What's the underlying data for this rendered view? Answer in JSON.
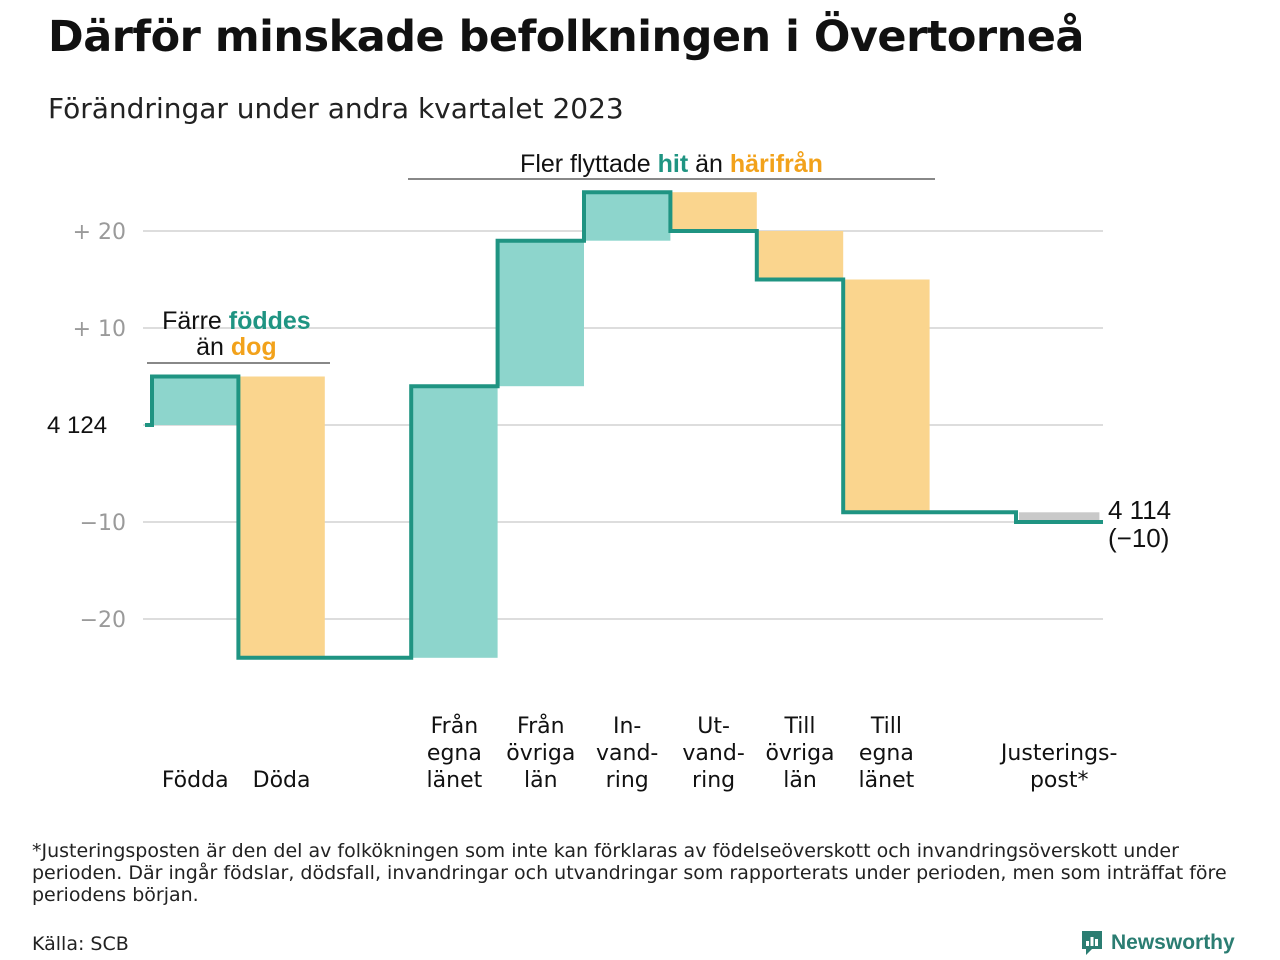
{
  "title": "Därför minskade befolkningen i Övertorneå",
  "subtitle": "Förändringar under andra kvartalet 2023",
  "chart_data": {
    "type": "waterfall",
    "start_value": 4124,
    "start_label": "4  124",
    "end_value": 4114,
    "end_label": "4 114",
    "end_change_label": "(−10)",
    "y_tick_values": [
      20,
      10,
      0,
      -10,
      -20
    ],
    "y_tick_labels": [
      "+  20",
      "+  10",
      "",
      "−10",
      "−20"
    ],
    "ylim": [
      -25,
      25
    ],
    "steps": [
      {
        "label": [
          "Födda"
        ],
        "value": 5,
        "kind": "gain"
      },
      {
        "label": [
          "Döda"
        ],
        "value": -29,
        "kind": "loss"
      },
      {
        "label": [],
        "value": 0,
        "kind": "gap"
      },
      {
        "label": [
          "Från",
          "egna",
          "länet"
        ],
        "value": 28,
        "kind": "gain"
      },
      {
        "label": [
          "Från",
          "övriga",
          "län"
        ],
        "value": 15,
        "kind": "gain"
      },
      {
        "label": [
          "In-",
          "vand-",
          "ring"
        ],
        "value": 5,
        "kind": "gain"
      },
      {
        "label": [
          "Ut-",
          "vand-",
          "ring"
        ],
        "value": -4,
        "kind": "loss"
      },
      {
        "label": [
          "Till",
          "övriga",
          "län"
        ],
        "value": -5,
        "kind": "loss"
      },
      {
        "label": [
          "Till",
          "egna",
          "länet"
        ],
        "value": -24,
        "kind": "loss"
      },
      {
        "label": [],
        "value": 0,
        "kind": "gap"
      },
      {
        "label": [
          "Justerings-",
          "post*"
        ],
        "value": -1,
        "kind": "adjust"
      }
    ],
    "annotations": {
      "births": {
        "line1": "Färre ",
        "line1_em": "föddes",
        "line2": "än ",
        "line2_em": "dog"
      },
      "migration": {
        "text1": "Fler flyttade ",
        "em1": "hit",
        "text2": " än ",
        "em2": "härifrån"
      }
    },
    "colors": {
      "line": "#1f9482",
      "gain": "#8dd5cc",
      "loss": "#fad58e",
      "adjust": "#c9c9c9",
      "em_gain": "#1f9482",
      "em_loss": "#f2a21b",
      "grid": "#dddddd",
      "tick": "#9a9a9a"
    }
  },
  "footnote": "*Justeringsposten är den del av folkökningen som inte kan förklaras av födelseöverskott och invandringsöverskott under perioden. Där ingår födslar, dödsfall, invandringar och utvandringar som rapporterats under perioden, men som inträffat före periodens början.",
  "source": "Källa: SCB",
  "brand": "Newsworthy",
  "brand_icon": "newsworthy-logo-icon"
}
